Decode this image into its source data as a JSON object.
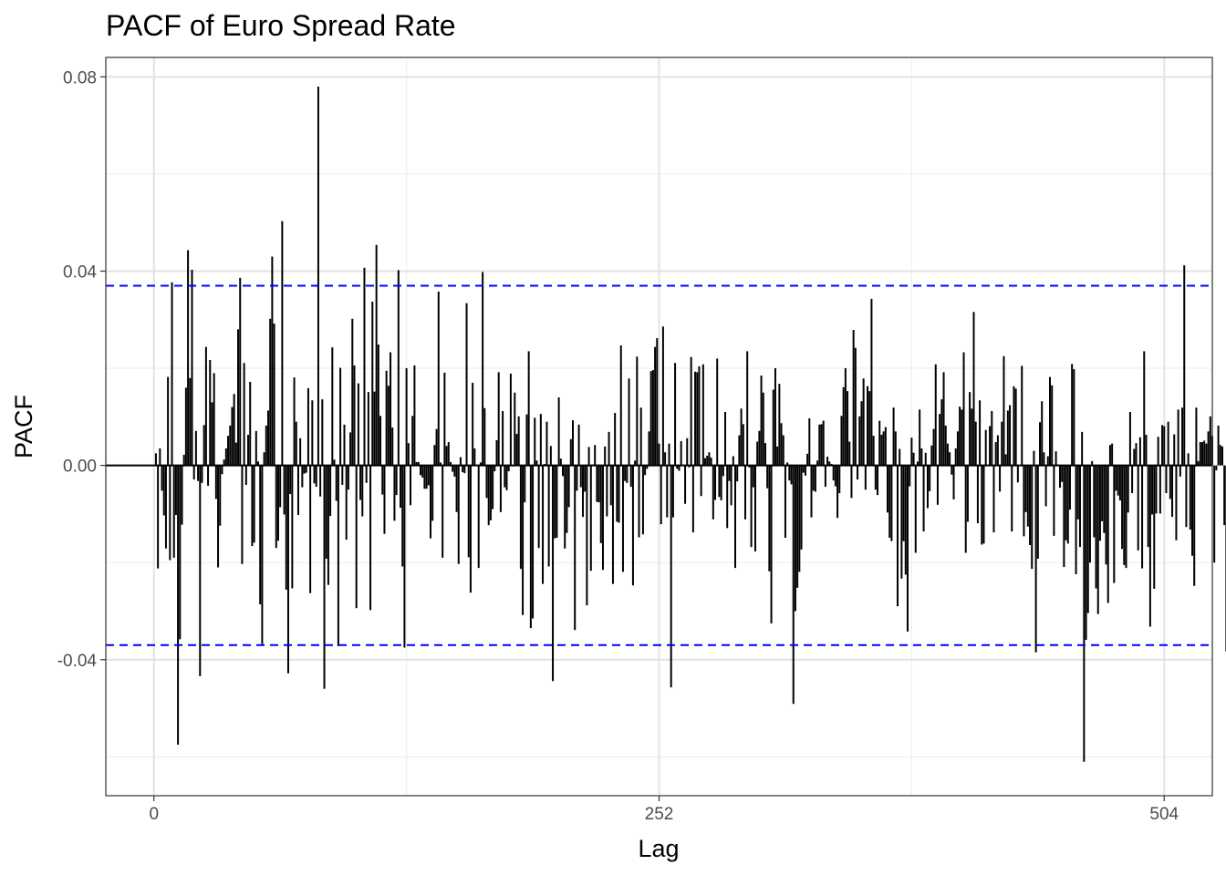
{
  "chart_data": {
    "type": "bar",
    "title": "PACF of Euro Spread Rate",
    "xlabel": "Lag",
    "ylabel": "PACF",
    "xlim": [
      -24,
      528
    ],
    "ylim": [
      -0.068,
      0.084
    ],
    "x_ticks": [
      0,
      252,
      504
    ],
    "x_tick_labels": [
      "0",
      "252",
      "504"
    ],
    "y_ticks": [
      -0.04,
      0,
      0.04,
      0.08
    ],
    "y_tick_labels": [
      "-0.04",
      "0.00",
      "0.04",
      "0.08"
    ],
    "confidence_bounds": [
      0.037,
      -0.037
    ],
    "lag_start": 1,
    "values": [
      0.0025,
      -0.0212,
      0.0035,
      -0.0052,
      -0.0103,
      -0.0171,
      0.0182,
      -0.0195,
      0.0377,
      -0.019,
      -0.0102,
      -0.0575,
      -0.0358,
      -0.0122,
      0.0022,
      0.016,
      0.0443,
      0.018,
      0.0403,
      -0.0029,
      0.0071,
      -0.0032,
      -0.0434,
      -0.0036,
      0.0083,
      0.0244,
      -0.0042,
      0.0217,
      0.013,
      0.019,
      -0.0069,
      -0.021,
      -0.0124,
      -0.0018,
      0.0012,
      0.0035,
      0.0061,
      0.0082,
      0.012,
      0.0147,
      0.0047,
      0.028,
      0.0386,
      -0.0203,
      0.0211,
      -0.004,
      0.0063,
      0.0172,
      -0.0166,
      -0.0159,
      0.0071,
      0.0008,
      -0.0286,
      -0.0368,
      0.0027,
      0.0082,
      0.0113,
      0.0302,
      0.043,
      0.0292,
      -0.017,
      -0.0155,
      -0.0086,
      0.0503,
      -0.0101,
      -0.0256,
      -0.0428,
      -0.0059,
      -0.0253,
      0.0181,
      0.009,
      -0.0102,
      0.0056,
      -0.0045,
      -0.0017,
      -0.0015,
      0.0159,
      -0.0263,
      0.0134,
      -0.0037,
      -0.0044,
      0.078,
      -0.0064,
      0.0136,
      -0.046,
      -0.0192,
      -0.0246,
      -0.0104,
      0.0243,
      0.0012,
      -0.0073,
      -0.0372,
      0.0201,
      -0.004,
      0.0084,
      -0.0153,
      -0.005,
      0.0068,
      0.0302,
      0.0206,
      -0.0294,
      0.0169,
      -0.0071,
      -0.0105,
      0.0407,
      -0.0036,
      0.0151,
      -0.0298,
      0.0337,
      0.0152,
      0.0454,
      0.0249,
      0.0102,
      -0.006,
      -0.0141,
      0.0195,
      0.0164,
      0.0233,
      0.0078,
      -0.0114,
      -0.0061,
      0.0402,
      -0.0087,
      -0.0208,
      -0.0375,
      0.02,
      0.0046,
      -0.0082,
      0.0102,
      0.0206,
      0.0007,
      0.0007,
      -0.002,
      -0.0025,
      -0.0048,
      -0.0048,
      -0.0041,
      -0.015,
      -0.0114,
      0.0042,
      0.0075,
      0.0358,
      0.0006,
      -0.019,
      0.0191,
      0.004,
      0.0048,
      0.0007,
      -0.0013,
      -0.0023,
      -0.0096,
      -0.0203,
      0.0017,
      -0.0014,
      -0.0016,
      0.0334,
      -0.0189,
      -0.0262,
      0.017,
      0.0035,
      -0.0001,
      -0.0211,
      0.0006,
      0.0398,
      0.0118,
      -0.0067,
      -0.0123,
      -0.0113,
      -0.009,
      -0.0012,
      0.0052,
      0.0192,
      -0.0096,
      0.0112,
      -0.0045,
      -0.0051,
      -0.0012,
      0.0189,
      -0.0002,
      0.015,
      0.0065,
      0.0101,
      -0.0213,
      -0.0308,
      -0.0076,
      0.0105,
      0.0235,
      -0.0335,
      -0.0315,
      0.0098,
      0.001,
      -0.017,
      0.0106,
      -0.0244,
      0.0003,
      0.009,
      -0.0208,
      0.004,
      -0.0444,
      -0.015,
      -0.0149,
      0.014,
      0.0014,
      -0.0022,
      -0.0171,
      -0.0139,
      -0.0086,
      0.0054,
      0.0093,
      -0.0339,
      -0.0052,
      0.0084,
      -0.0045,
      -0.0106,
      -0.0054,
      -0.0288,
      0.0038,
      -0.0217,
      0.0002,
      0.0042,
      -0.0075,
      -0.0076,
      -0.016,
      -0.0215,
      0.0039,
      -0.0105,
      0.0069,
      -0.0082,
      -0.0244,
      0.0108,
      -0.0116,
      -0.0118,
      0.0247,
      -0.0219,
      -0.0032,
      -0.0036,
      0.0179,
      -0.0044,
      -0.0247,
      0.001,
      0.0224,
      -0.0148,
      0.0119,
      -0.0142,
      -0.002,
      -0.0007,
      0.007,
      0.0194,
      0.0196,
      0.0244,
      0.0262,
      0.0045,
      -0.0121,
      0.0286,
      0.0027,
      -0.0107,
      0.0045,
      -0.0457,
      -0.0107,
      0.0211,
      -0.0007,
      -0.0011,
      0.005,
      0.0001,
      -0.0079,
      0.0056,
      -0.0004,
      0.0223,
      -0.0138,
      0.0193,
      0.0192,
      0.0204,
      -0.0063,
      0.0208,
      0.0015,
      0.002,
      0.0027,
      0.0016,
      -0.0111,
      -0.0071,
      0.022,
      -0.0065,
      -0.0072,
      -0.0022,
      0.011,
      -0.0129,
      -0.0032,
      -0.0082,
      0.0019,
      -0.0211,
      -0.0033,
      0.0062,
      0.0117,
      0.0085,
      -0.0111,
      0.0235,
      -0.0004,
      -0.0168,
      -0.0045,
      -0.0177,
      0.0049,
      0.0071,
      0.0185,
      0.015,
      0.0046,
      -0.0047,
      -0.0218,
      -0.0325,
      0.0156,
      0.02,
      0.0039,
      0.0168,
      0.0087,
      0.0062,
      -0.0149,
      0.0006,
      -0.0031,
      -0.0039,
      -0.0491,
      -0.03,
      -0.0252,
      -0.0219,
      -0.0173,
      -0.0015,
      -0.0021,
      0.0024,
      0.0097,
      -0.0107,
      -0.0052,
      -0.0054,
      0.001,
      0.0084,
      0.0085,
      0.0092,
      -0.0044,
      0.0018,
      0.0008,
      0.0003,
      -0.0031,
      -0.0043,
      -0.0108,
      -0.0057,
      0.0102,
      0.0161,
      0.02,
      0.0153,
      0.0049,
      -0.0067,
      0.0279,
      0.0242,
      -0.0029,
      0.0101,
      0.0132,
      0.0179,
      -0.005,
      0.0163,
      0.0153,
      0.0343,
      0.0061,
      -0.005,
      -0.0061,
      0.0092,
      0.0063,
      0.007,
      0.0079,
      -0.0097,
      -0.0149,
      -0.0156,
      0.0119,
      0.007,
      -0.029,
      0.0034,
      -0.0233,
      -0.0156,
      -0.0225,
      -0.0342,
      -0.0043,
      0.0057,
      0.0026,
      -0.018,
      0.0008,
      0.0115,
      0.0035,
      -0.0136,
      0.0026,
      -0.0088,
      -0.0053,
      0.0041,
      0.0075,
      0.0208,
      -0.0081,
      0.0106,
      0.0136,
      0.0192,
      0.0082,
      0.0045,
      0.0027,
      -0.0019,
      -0.007,
      0.0035,
      0.007,
      0.0121,
      0.0115,
      0.0233,
      -0.018,
      -0.0116,
      0.0151,
      0.0117,
      0.0316,
      0.009,
      -0.0119,
      0.0134,
      -0.0163,
      -0.0161,
      0.0073,
      0.0001,
      0.0081,
      0.0112,
      -0.0138,
      0.0048,
      0.0062,
      -0.0054,
      0.009,
      0.0225,
      0.0023,
      0.0113,
      0.0124,
      -0.0136,
      0.0163,
      0.0158,
      -0.0035,
      -0.0001,
      0.0205,
      -0.0146,
      -0.0096,
      -0.0126,
      -0.0164,
      -0.0213,
      0.003,
      -0.0385,
      -0.0192,
      0.0089,
      0.0132,
      0.0027,
      -0.0084,
      0.0019,
      0.0182,
      0.0165,
      -0.0145,
      0.0029,
      0.0002,
      -0.0046,
      -0.0034,
      -0.0209,
      -0.0154,
      -0.0161,
      -0.0091,
      0.0209,
      0.0198,
      -0.0224,
      -0.0111,
      -0.0168,
      0.0069,
      -0.061,
      -0.0359,
      -0.0304,
      -0.02,
      0.0009,
      -0.0148,
      -0.0253,
      -0.0306,
      -0.0155,
      -0.0115,
      -0.0139,
      -0.0204,
      -0.0283,
      0.0042,
      0.0045,
      -0.0242,
      -0.0052,
      -0.0062,
      -0.0072,
      -0.0172,
      -0.0205,
      -0.0211,
      -0.0097,
      0.011,
      -0.0057,
      0.0034,
      0.0046,
      -0.0175,
      0.0058,
      -0.0212,
      0.0235,
      0.0063,
      -0.0168,
      -0.0332,
      -0.0101,
      -0.0254,
      -0.0099,
      0.0059,
      -0.0099,
      0.0083,
      0.0081,
      -0.0057,
      0.009,
      -0.0069,
      -0.0106,
      0.0064,
      -0.0154,
      0.0115,
      -0.0023,
      0.0119,
      0.0412,
      -0.0127,
      0.0025,
      -0.0132,
      -0.0186,
      -0.0248,
      0.0119,
      0.0009,
      0.0048,
      0.0048,
      0.0051,
      0.0045,
      0.007,
      0.0101,
      0.0061,
      -0.02,
      -0.001,
      0.0082,
      0.0042,
      0.0039,
      -0.0123,
      -0.0383,
      -0.0152,
      -0.0161
    ]
  }
}
